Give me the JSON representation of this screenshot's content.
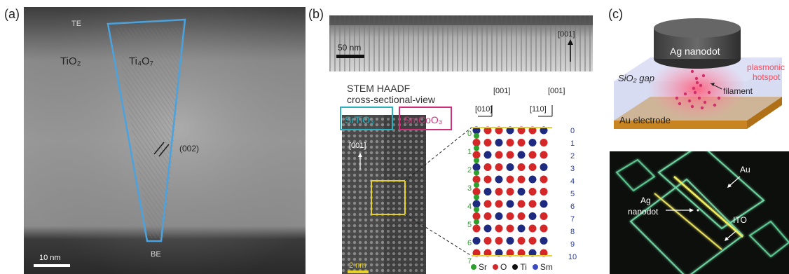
{
  "panel_a": {
    "label": "(a)",
    "te": "TE",
    "tio2": "TiO₂",
    "ti4o7": "Ti₄O₇",
    "plane": "(002)",
    "be": "BE",
    "scale": "10 nm"
  },
  "panel_b": {
    "label": "(b)",
    "scale_top": "50 nm",
    "dir_top": "[001]",
    "title1": "STEM HAADF",
    "title2": "cross-sectional-view",
    "srtio3": "SrTiO₃",
    "smcoo3": "SmCoO₃",
    "dir_left": "[001]",
    "scale_bottom": "2 nm",
    "axis1_top": "[001]",
    "axis1_side": "[010]",
    "axis2_top": "[001]",
    "axis2_side": "[110]",
    "layer_numbers": [
      "0",
      "1",
      "2",
      "3",
      "4",
      "5",
      "6",
      "7",
      "8",
      "9",
      "10"
    ],
    "left_numbers": [
      "0",
      "1",
      "2",
      "3",
      "4",
      "5",
      "6",
      "7"
    ],
    "legend": [
      {
        "label": "Sr",
        "color": "#2ca02c"
      },
      {
        "label": "O",
        "color": "#d62728"
      },
      {
        "label": "Ti",
        "color": "#111111"
      },
      {
        "label": "Sm",
        "color": "#3b4cc0"
      }
    ]
  },
  "panel_c": {
    "label": "(c)",
    "ag_nanodot": "Ag nanodot",
    "sio2_gap": "SiO₂ gap",
    "plasmonic1": "plasmonic",
    "plasmonic2": "hotspot",
    "filament": "filament",
    "au_electrode": "Au electrode",
    "au": "Au",
    "ag": "Ag",
    "nanodot": "nanodot",
    "ito": "ITO"
  }
}
